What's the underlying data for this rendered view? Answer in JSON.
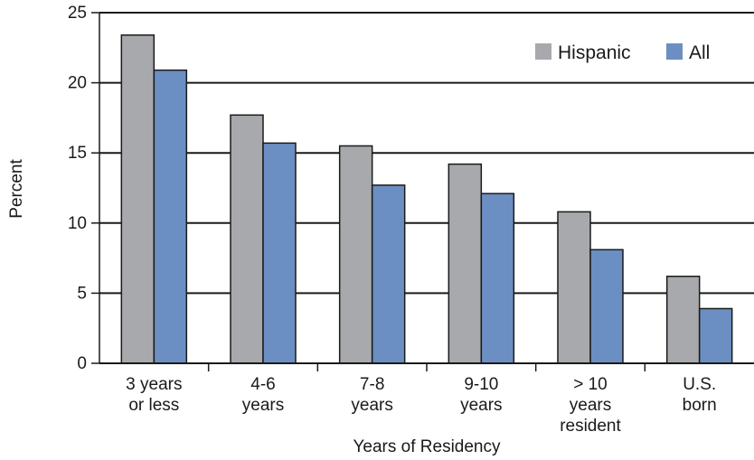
{
  "chart_data": {
    "type": "bar",
    "title": "",
    "xlabel": "Years of Residency",
    "ylabel": "Percent",
    "ylim": [
      0,
      25
    ],
    "yticks": [
      0,
      5,
      10,
      15,
      20,
      25
    ],
    "grid": true,
    "legend_position": "top-right",
    "categories": [
      [
        "3 years",
        "or less"
      ],
      [
        "4-6",
        "years"
      ],
      [
        "7-8",
        "years"
      ],
      [
        "9-10",
        "years"
      ],
      [
        "> 10",
        "years",
        "resident"
      ],
      [
        "U.S.",
        "born"
      ]
    ],
    "series": [
      {
        "name": "Hispanic",
        "color": "#a7a9ac",
        "values": [
          23.4,
          17.7,
          15.5,
          14.2,
          10.8,
          6.2
        ]
      },
      {
        "name": "All",
        "color": "#6b8fc2",
        "values": [
          20.9,
          15.7,
          12.7,
          12.1,
          8.1,
          3.9
        ]
      }
    ]
  }
}
